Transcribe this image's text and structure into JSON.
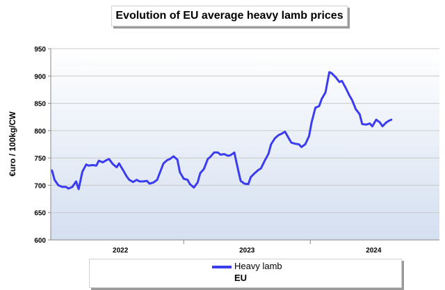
{
  "chart_data": {
    "type": "line",
    "title": "Evolution of EU average heavy lamb prices",
    "ylabel": "€uro / 100kg/CW",
    "xlabel": "",
    "ylim": [
      600,
      950
    ],
    "yticks": [
      600,
      650,
      700,
      750,
      800,
      850,
      900,
      950
    ],
    "xlim": [
      2021.45,
      2024.52
    ],
    "year_labels": [
      {
        "label": "2022",
        "at": 2022.0
      },
      {
        "label": "2023",
        "at": 2023.0
      },
      {
        "label": "2024",
        "at": 2024.0
      }
    ],
    "year_boundaries": [
      2022.5,
      2023.5
    ],
    "grid": true,
    "legend": "bottom",
    "legend_title": "EU",
    "colors": {
      "line": "#3b3bf0",
      "axis": "#888888",
      "plot_top": "#ffffff",
      "plot_bottom": "#d4dff0"
    },
    "series": [
      {
        "name": "Heavy lamb",
        "x": [
          2021.46,
          2021.48,
          2021.51,
          2021.54,
          2021.57,
          2021.59,
          2021.62,
          2021.65,
          2021.67,
          2021.7,
          2021.73,
          2021.75,
          2021.78,
          2021.81,
          2021.83,
          2021.86,
          2021.89,
          2021.91,
          2021.94,
          2021.97,
          2021.99,
          2022.02,
          2022.05,
          2022.07,
          2022.1,
          2022.13,
          2022.15,
          2022.18,
          2022.21,
          2022.23,
          2022.26,
          2022.29,
          2022.31,
          2022.34,
          2022.37,
          2022.39,
          2022.42,
          2022.45,
          2022.47,
          2022.5,
          2022.53,
          2022.55,
          2022.58,
          2022.61,
          2022.63,
          2022.66,
          2022.69,
          2022.71,
          2022.74,
          2022.77,
          2022.79,
          2022.82,
          2022.85,
          2022.87,
          2022.9,
          2022.93,
          2022.95,
          2022.98,
          2023.01,
          2023.03,
          2023.06,
          2023.09,
          2023.11,
          2023.14,
          2023.17,
          2023.19,
          2023.22,
          2023.25,
          2023.27,
          2023.3,
          2023.33,
          2023.35,
          2023.38,
          2023.41,
          2023.43,
          2023.46,
          2023.49,
          2023.51,
          2023.54,
          2023.57,
          2023.59,
          2023.62,
          2023.65,
          2023.67,
          2023.7,
          2023.73,
          2023.75,
          2023.78,
          2023.81,
          2023.83,
          2023.86,
          2023.89,
          2023.91,
          2023.94,
          2023.97,
          2023.99,
          2024.02,
          2024.05,
          2024.07,
          2024.1,
          2024.12,
          2024.14
        ],
        "values": [
          727,
          710,
          700,
          697,
          697,
          694,
          697,
          707,
          693,
          725,
          738,
          736,
          737,
          736,
          745,
          742,
          746,
          748,
          739,
          733,
          740,
          728,
          716,
          710,
          706,
          710,
          707,
          707,
          708,
          703,
          705,
          710,
          722,
          740,
          746,
          748,
          753,
          747,
          724,
          712,
          710,
          702,
          696,
          705,
          722,
          730,
          748,
          752,
          760,
          760,
          756,
          757,
          754,
          755,
          760,
          728,
          708,
          703,
          702,
          715,
          722,
          728,
          731,
          745,
          758,
          775,
          786,
          792,
          794,
          798,
          786,
          778,
          776,
          775,
          770,
          775,
          790,
          815,
          842,
          845,
          858,
          870,
          907,
          905,
          898,
          889,
          891,
          878,
          864,
          856,
          839,
          830,
          812,
          811,
          813,
          808,
          820,
          815,
          808,
          815,
          818,
          820
        ]
      }
    ]
  }
}
